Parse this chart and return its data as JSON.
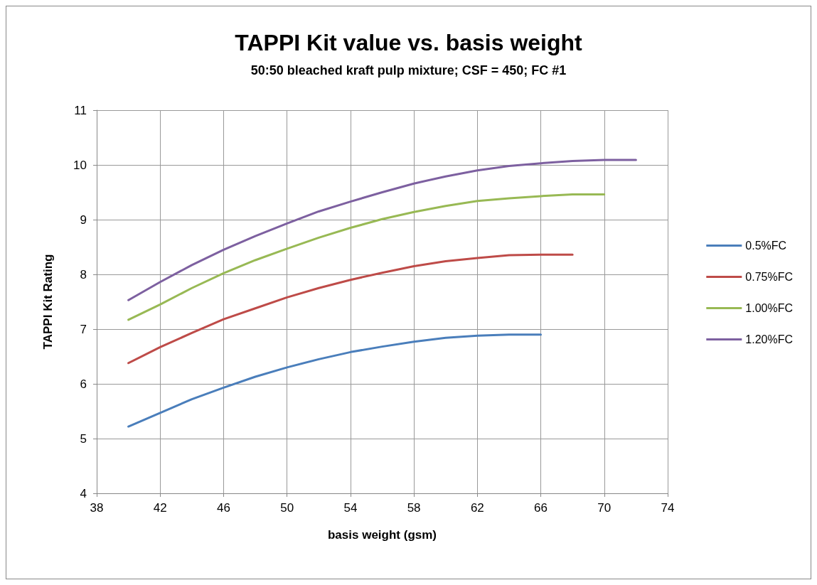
{
  "chart_data": {
    "type": "line",
    "title": "TAPPI Kit value vs. basis weight",
    "subtitle": "50:50 bleached kraft pulp mixture; CSF = 450; FC #1",
    "xlabel": "basis weight (gsm)",
    "ylabel": "TAPPI Kit Rating",
    "x": [
      40,
      42,
      44,
      46,
      48,
      50,
      52,
      54,
      56,
      58,
      60,
      62,
      64,
      66,
      68,
      70,
      72
    ],
    "series": [
      {
        "name": "0.5%FC",
        "color": "#4a7ebb",
        "values": [
          5.22,
          5.47,
          5.72,
          5.93,
          6.13,
          6.3,
          6.45,
          6.58,
          6.68,
          6.77,
          6.84,
          6.88,
          6.9,
          6.9,
          null,
          null,
          null
        ]
      },
      {
        "name": "0.75%FC",
        "color": "#be4b48",
        "values": [
          6.38,
          6.67,
          6.93,
          7.18,
          7.38,
          7.58,
          7.75,
          7.9,
          8.03,
          8.15,
          8.24,
          8.3,
          8.35,
          8.36,
          8.36,
          null,
          null
        ]
      },
      {
        "name": "1.00%FC",
        "color": "#98b954",
        "values": [
          7.17,
          7.45,
          7.75,
          8.02,
          8.26,
          8.47,
          8.67,
          8.85,
          9.01,
          9.14,
          9.25,
          9.34,
          9.39,
          9.43,
          9.46,
          9.46,
          null
        ]
      },
      {
        "name": "1.20%FC",
        "color": "#7d60a0",
        "values": [
          7.53,
          7.86,
          8.17,
          8.45,
          8.7,
          8.93,
          9.15,
          9.33,
          9.5,
          9.66,
          9.79,
          9.9,
          9.98,
          10.03,
          10.07,
          10.09,
          10.09
        ]
      }
    ],
    "xlim": [
      38,
      74
    ],
    "xticks": [
      38,
      42,
      46,
      50,
      54,
      58,
      62,
      66,
      70,
      74
    ],
    "ylim": [
      4,
      11
    ],
    "yticks": [
      4,
      5,
      6,
      7,
      8,
      9,
      10,
      11
    ],
    "grid": true,
    "legend": "right",
    "marker": "none",
    "line_style": "solid"
  }
}
